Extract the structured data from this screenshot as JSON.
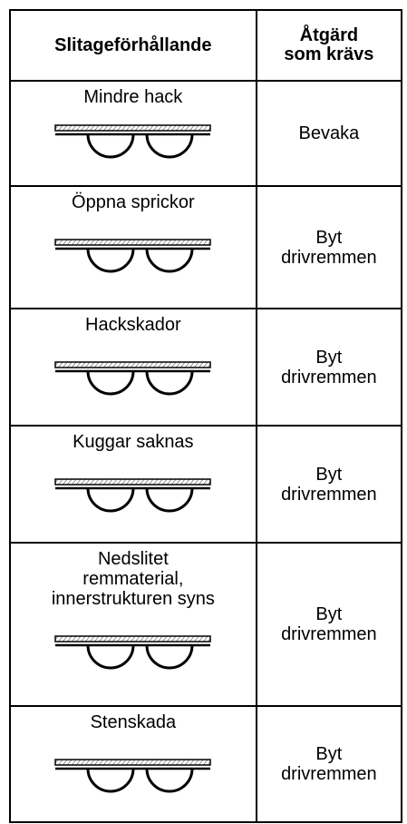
{
  "table": {
    "header": [
      "Slitageförhållande",
      "Åtgärd\nsom krävs"
    ],
    "rows": [
      [
        "Mindre hack",
        "Bevaka"
      ],
      [
        "Öppna sprickor",
        "Byt\ndrivremmen"
      ],
      [
        "Hackskador",
        "Byt\ndrivremmen"
      ],
      [
        "Kuggar saknas",
        "Byt\ndrivremmen"
      ],
      [
        "Nedslitet\nremmaterial,\ninnerstrukturen syns",
        "Byt\ndrivremmen"
      ],
      [
        "Stenskada",
        "Byt\ndrivremmen"
      ]
    ]
  }
}
